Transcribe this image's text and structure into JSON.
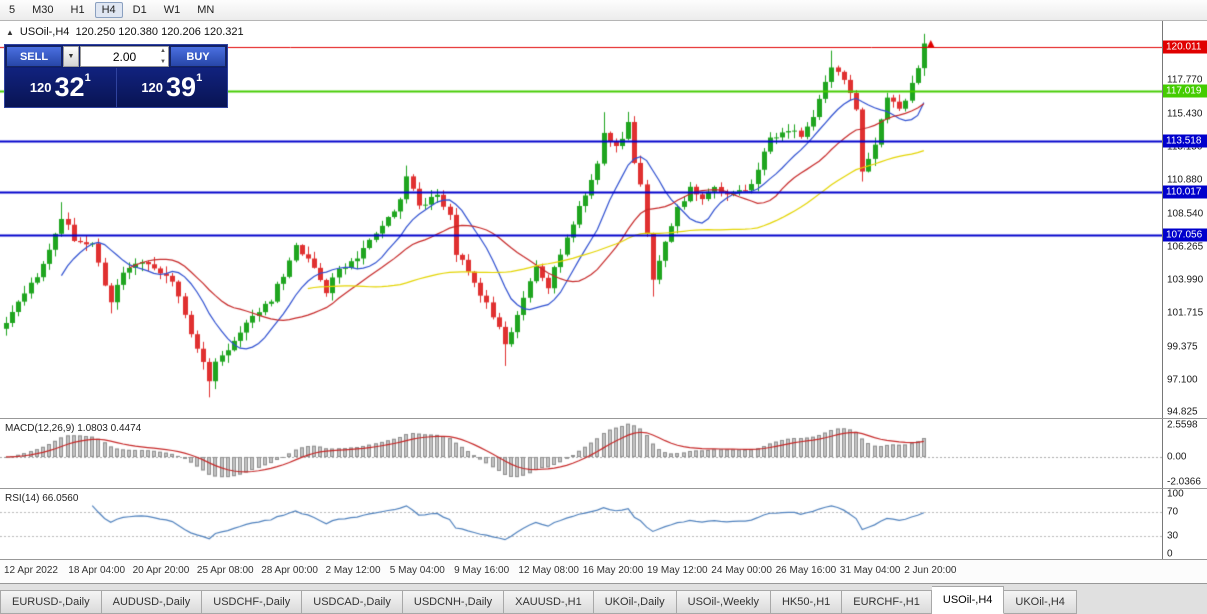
{
  "toolbar": {
    "timeframes": [
      "5",
      "M30",
      "H1",
      "H4",
      "D1",
      "W1",
      "MN"
    ],
    "active": "H4"
  },
  "chart": {
    "symbol_header": "USOil-,H4",
    "ohlc": "120.250 120.380 120.206 120.321"
  },
  "icons": {
    "collapse": "▲",
    "dropdown": "▼",
    "spin_up": "▲",
    "spin_down": "▼"
  },
  "trade_panel": {
    "sell_label": "SELL",
    "buy_label": "BUY",
    "volume": "2.00",
    "sell_quote": {
      "int": "120",
      "pips": "32",
      "frac": "1"
    },
    "buy_quote": {
      "int": "120",
      "pips": "39",
      "frac": "1"
    }
  },
  "macd": {
    "label": "MACD(12,26,9) 1.0803 0.4474",
    "range": [
      -2.0366,
      2.5598
    ],
    "ticks": [
      {
        "v": 2.5598,
        "label": "2.5598"
      },
      {
        "v": 0,
        "label": "0.00"
      },
      {
        "v": -2.0366,
        "label": "-2.0366"
      }
    ]
  },
  "rsi": {
    "label": "RSI(14) 66.0560",
    "ticks": [
      {
        "v": 100,
        "label": "100"
      },
      {
        "v": 70,
        "label": "70"
      },
      {
        "v": 30,
        "label": "30"
      },
      {
        "v": 0,
        "label": "0"
      }
    ],
    "levels": [
      70,
      30
    ]
  },
  "time_axis": {
    "labels": [
      "12 Apr 2022",
      "18 Apr 04:00",
      "20 Apr 20:00",
      "25 Apr 08:00",
      "28 Apr 00:00",
      "2 May 12:00",
      "5 May 04:00",
      "9 May 16:00",
      "12 May 08:00",
      "16 May 20:00",
      "19 May 12:00",
      "24 May 00:00",
      "26 May 16:00",
      "31 May 04:00",
      "2 Jun 20:00"
    ]
  },
  "tabs": [
    {
      "label": "EURUSD-,Daily"
    },
    {
      "label": "AUDUSD-,Daily"
    },
    {
      "label": "USDCHF-,Daily"
    },
    {
      "label": "USDCAD-,Daily"
    },
    {
      "label": "USDCNH-,Daily"
    },
    {
      "label": "XAUUSD-,H1"
    },
    {
      "label": "UKOil-,Daily"
    },
    {
      "label": "USOil-,Weekly"
    },
    {
      "label": "HK50-,H1"
    },
    {
      "label": "EURCHF-,H1"
    },
    {
      "label": "USOil-,H4",
      "active": true
    },
    {
      "label": "UKOil-,H4"
    }
  ],
  "colors": {
    "up_candle": "#1fa51f",
    "down_candle": "#e03030",
    "macd_hist": "#c4c4c4",
    "macd_hist_border": "#8f8f8f",
    "macd_signal": "#c62828",
    "rsi_line": "#4f81bd",
    "level_red": "#e00000",
    "level_green": "#44cc00",
    "level_blue": "#0000cc",
    "panel_blue": "#0d1d72",
    "button_blue": "#3a5fd0"
  },
  "chart_data": {
    "type": "candlestick",
    "symbol": "USOil-",
    "timeframe": "H4",
    "ohlc_current": {
      "open": 120.25,
      "high": 120.38,
      "low": 120.206,
      "close": 120.321
    },
    "ylim": [
      94.5,
      121.8
    ],
    "price_ticks": [
      {
        "v": 117.77,
        "label": "117.770"
      },
      {
        "v": 115.43,
        "label": "115.430"
      },
      {
        "v": 113.15,
        "label": "113.150"
      },
      {
        "v": 110.88,
        "label": "110.880"
      },
      {
        "v": 108.54,
        "label": "108.540"
      },
      {
        "v": 106.265,
        "label": "106.265"
      },
      {
        "v": 103.99,
        "label": "103.990"
      },
      {
        "v": 101.715,
        "label": "101.715"
      },
      {
        "v": 99.375,
        "label": "99.375"
      },
      {
        "v": 97.1,
        "label": "97.100"
      },
      {
        "v": 94.825,
        "label": "94.825"
      }
    ],
    "levels": [
      {
        "price": 120.011,
        "label": "120.011",
        "color": "#e00000",
        "width": 1
      },
      {
        "price": 117.019,
        "label": "117.019",
        "color": "#44cc00",
        "width": 2
      },
      {
        "price": 113.518,
        "label": "113.518",
        "color": "#0000cc",
        "width": 2
      },
      {
        "price": 110.017,
        "label": "110.017",
        "color": "#0000cc",
        "width": 2
      },
      {
        "price": 107.056,
        "label": "107.056",
        "color": "#0000cc",
        "width": 2
      }
    ],
    "candles": {
      "count": 150,
      "anchors": [
        [
          0,
          101.0
        ],
        [
          2,
          102.4
        ],
        [
          5,
          104.3
        ],
        [
          7,
          106.0
        ],
        [
          9,
          108.4
        ],
        [
          11,
          106.9
        ],
        [
          14,
          106.5
        ],
        [
          15,
          105.0
        ],
        [
          17,
          102.6
        ],
        [
          19,
          104.4
        ],
        [
          22,
          105.4
        ],
        [
          24,
          104.8
        ],
        [
          27,
          103.8
        ],
        [
          29,
          101.5
        ],
        [
          31,
          99.5
        ],
        [
          33,
          96.8
        ],
        [
          34,
          98.2
        ],
        [
          36,
          99.4
        ],
        [
          38,
          100.3
        ],
        [
          41,
          102.0
        ],
        [
          43,
          102.6
        ],
        [
          46,
          105.3
        ],
        [
          47,
          106.5
        ],
        [
          50,
          104.8
        ],
        [
          52,
          103.3
        ],
        [
          54,
          104.6
        ],
        [
          57,
          105.5
        ],
        [
          59,
          106.8
        ],
        [
          62,
          108.2
        ],
        [
          64,
          109.5
        ],
        [
          65,
          110.9
        ],
        [
          67,
          109.2
        ],
        [
          70,
          109.6
        ],
        [
          72,
          108.5
        ],
        [
          73,
          105.9
        ],
        [
          75,
          104.4
        ],
        [
          77,
          103.1
        ],
        [
          79,
          101.6
        ],
        [
          81,
          99.8
        ],
        [
          82,
          100.6
        ],
        [
          84,
          102.6
        ],
        [
          86,
          104.9
        ],
        [
          88,
          103.6
        ],
        [
          90,
          105.8
        ],
        [
          92,
          107.9
        ],
        [
          94,
          110.0
        ],
        [
          96,
          112.0
        ],
        [
          97,
          114.0
        ],
        [
          99,
          113.1
        ],
        [
          101,
          114.7
        ],
        [
          102,
          112.2
        ],
        [
          103,
          110.5
        ],
        [
          105,
          103.8
        ],
        [
          107,
          106.4
        ],
        [
          109,
          108.9
        ],
        [
          111,
          110.2
        ],
        [
          113,
          109.8
        ],
        [
          115,
          110.3
        ],
        [
          117,
          109.9
        ],
        [
          119,
          110.2
        ],
        [
          121,
          110.6
        ],
        [
          122,
          111.6
        ],
        [
          124,
          113.8
        ],
        [
          126,
          114.2
        ],
        [
          128,
          114.4
        ],
        [
          129,
          113.9
        ],
        [
          131,
          115.0
        ],
        [
          133,
          117.5
        ],
        [
          134,
          118.7
        ],
        [
          136,
          117.6
        ],
        [
          138,
          115.8
        ],
        [
          139,
          111.4
        ],
        [
          141,
          113.2
        ],
        [
          143,
          116.6
        ],
        [
          145,
          115.7
        ],
        [
          147,
          117.3
        ],
        [
          149,
          120.3
        ]
      ],
      "wick_boost_high": [
        [
          9,
          0.8
        ],
        [
          65,
          0.6
        ],
        [
          97,
          1.0
        ],
        [
          101,
          0.5
        ],
        [
          134,
          0.9
        ],
        [
          149,
          0.15
        ]
      ],
      "wick_boost_low": [
        [
          17,
          0.6
        ],
        [
          33,
          1.0
        ],
        [
          81,
          1.2
        ],
        [
          105,
          0.8
        ],
        [
          139,
          0.6
        ]
      ]
    },
    "moving_averages": [
      {
        "period": 10,
        "color": "#2e4fd0"
      },
      {
        "period": 21,
        "color": "#c62828"
      },
      {
        "period": 50,
        "color": "#e3d400"
      }
    ],
    "indicators": {
      "macd": {
        "fast": 12,
        "slow": 26,
        "signal": 9
      },
      "rsi": {
        "period": 14
      }
    },
    "marker": {
      "index": 149,
      "price": 120.15,
      "color": "#e00000",
      "type": "up-arrow"
    }
  }
}
